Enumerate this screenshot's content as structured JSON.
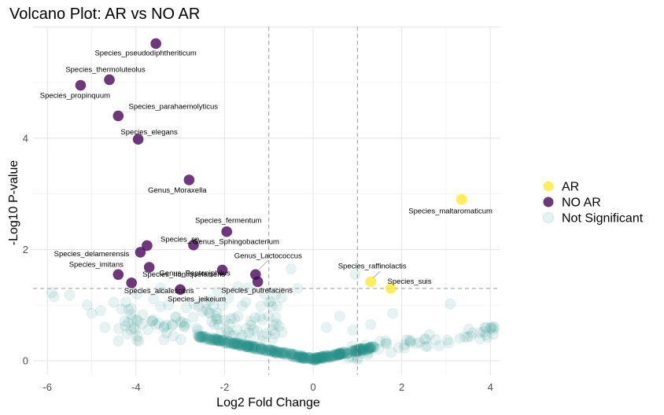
{
  "chart_data": {
    "type": "scatter",
    "title": "Volcano Plot: AR vs NO AR",
    "xlabel": "Log2 Fold Change",
    "ylabel": "-Log10 P-value",
    "xlim": [
      -6.6,
      4.6
    ],
    "ylim": [
      -0.3,
      6.0
    ],
    "x_ticks": [
      -6,
      -4,
      -2,
      0,
      2,
      4
    ],
    "y_ticks": [
      0,
      2,
      4
    ],
    "x_tick_labels": [
      "-6",
      "-4",
      "-2",
      "0",
      "2",
      "4"
    ],
    "y_tick_labels": [
      "0",
      "2",
      "4"
    ],
    "grid": true,
    "fc_threshold_lines": [
      -1,
      1
    ],
    "p_threshold_line": 1.3,
    "legend_position": "right",
    "colors": {
      "AR": "#fde725",
      "NO AR": "#440154",
      "Not Significant": "#21908c"
    },
    "legend": [
      {
        "label": "AR",
        "color": "#fde725"
      },
      {
        "label": "NO AR",
        "color": "#440154"
      },
      {
        "label": "Not Significant",
        "color": "#21908c"
      }
    ],
    "series": [
      {
        "name": "NO AR",
        "points": [
          {
            "label": "Species_pseudodiphtheriticum",
            "x": -3.55,
            "y": 5.7
          },
          {
            "label": "Species_thermoluteolus",
            "x": -4.6,
            "y": 5.05
          },
          {
            "label": "Species_propinquum",
            "x": -5.25,
            "y": 4.95
          },
          {
            "label": "Species_parahaemolyticus",
            "x": -4.4,
            "y": 4.4
          },
          {
            "label": "Species_elegans",
            "x": -3.95,
            "y": 3.98
          },
          {
            "label": "Genus_Moraxella",
            "x": -2.8,
            "y": 3.25
          },
          {
            "label": "Species_fermentum",
            "x": -1.95,
            "y": 2.32
          },
          {
            "label": "Genus_Sphingobacterium",
            "x": -2.7,
            "y": 2.08
          },
          {
            "label": "Species_sp.",
            "x": -3.75,
            "y": 2.07
          },
          {
            "label": "Species_delamerensis",
            "x": -3.9,
            "y": 1.95
          },
          {
            "label": "Genus_Peptoniphilus",
            "x": -2.05,
            "y": 1.63
          },
          {
            "label": "Species_nonliquefaciens",
            "x": -3.7,
            "y": 1.68
          },
          {
            "label": "Species_imitans",
            "x": -4.4,
            "y": 1.55
          },
          {
            "label": "Genus_Lactococcus",
            "x": -1.3,
            "y": 1.55
          },
          {
            "label": "Species_putrefaciens",
            "x": -1.25,
            "y": 1.42
          },
          {
            "label": "Species_alcalescens",
            "x": -4.1,
            "y": 1.4
          },
          {
            "label": "Species_jeikeium",
            "x": -3.0,
            "y": 1.28
          }
        ]
      },
      {
        "name": "AR",
        "points": [
          {
            "label": "Species_maltaromaticum",
            "x": 3.35,
            "y": 2.9
          },
          {
            "label": "Species_raffinolactis",
            "x": 1.3,
            "y": 1.42
          },
          {
            "label": "Species_suis",
            "x": 1.75,
            "y": 1.3
          }
        ]
      }
    ]
  }
}
